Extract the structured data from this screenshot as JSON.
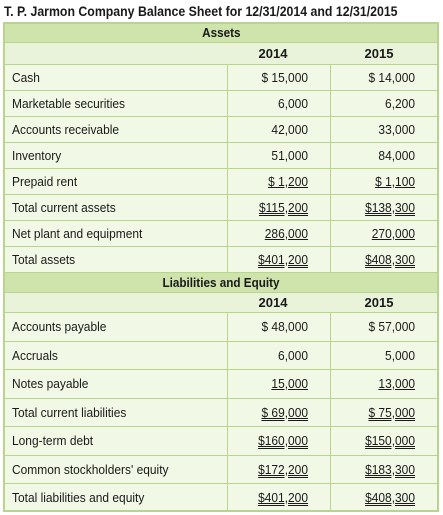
{
  "title": "T. P. Jarmon Company Balance Sheet for 12/31/2014 and 12/31/2015",
  "assets": {
    "header": "Assets",
    "year1": "2014",
    "year2": "2015",
    "rows": [
      {
        "label": "Cash",
        "v2014": "$ 15,000",
        "v2015": "$ 14,000"
      },
      {
        "label": "Marketable securities",
        "v2014": "6,000",
        "v2015": "6,200"
      },
      {
        "label": "Accounts receivable",
        "v2014": "42,000",
        "v2015": "33,000"
      },
      {
        "label": "Inventory",
        "v2014": "51,000",
        "v2015": "84,000"
      },
      {
        "label": "Prepaid rent",
        "v2014": "$ 1,200",
        "v2015": "$ 1,100"
      },
      {
        "label": "Total current assets",
        "v2014": "$115,200",
        "v2015": "$138,300"
      },
      {
        "label": "Net plant and equipment",
        "v2014": "286,000",
        "v2015": "270,000"
      },
      {
        "label": "Total assets",
        "v2014": "$401,200",
        "v2015": "$408,300"
      }
    ]
  },
  "liabilities": {
    "header": "Liabilities and Equity",
    "year1": "2014",
    "year2": "2015",
    "rows": [
      {
        "label": "Accounts payable",
        "v2014": "$ 48,000",
        "v2015": "$ 57,000"
      },
      {
        "label": "Accruals",
        "v2014": "6,000",
        "v2015": "5,000"
      },
      {
        "label": "Notes payable",
        "v2014": "15,000",
        "v2015": "13,000"
      },
      {
        "label": "Total current liabilities",
        "v2014": "$ 69,000",
        "v2015": "$ 75,000"
      },
      {
        "label": "Long-term debt",
        "v2014": "$160,000",
        "v2015": "$150,000"
      },
      {
        "label": "Common stockholders' equity",
        "v2014": "$172,200",
        "v2015": "$183,300"
      },
      {
        "label": "Total liabilities and equity",
        "v2014": "$401,200",
        "v2015": "$408,300"
      }
    ]
  }
}
